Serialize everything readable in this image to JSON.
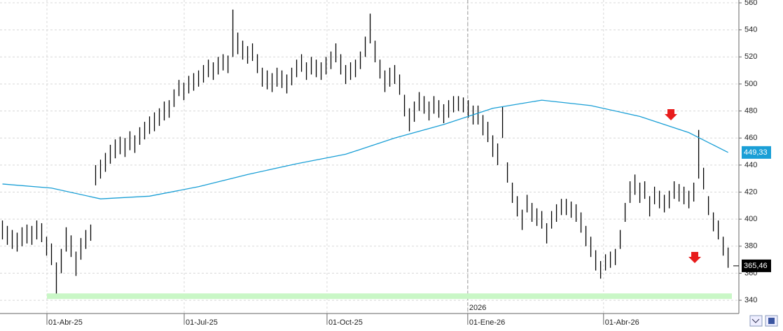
{
  "chart_data": {
    "type": "ohlc",
    "xlim": [
      -0.5,
      150.2
    ],
    "xticks": [
      {
        "value": 9.07,
        "label": "01-Abr-25"
      },
      {
        "value": 37.07,
        "label": "01-Jul-25"
      },
      {
        "value": 66.2,
        "label": "01-Oct-25"
      },
      {
        "value": 94.9,
        "label": "01-Ene-26"
      },
      {
        "value": 122.6,
        "label": "01-Abr-26"
      }
    ],
    "year_marker": {
      "value": 94.9,
      "label": "2026"
    },
    "ylim": [
      330.2,
      562.1
    ],
    "yticks": [
      340,
      360,
      380,
      400,
      420,
      440,
      460,
      480,
      500,
      520,
      540,
      560
    ],
    "grid": true,
    "color": "#000000",
    "high": [
      399,
      395,
      392,
      390,
      394,
      396,
      395,
      399,
      397,
      387,
      382,
      368,
      378,
      394,
      388,
      376,
      386,
      392,
      396,
      440,
      444,
      449,
      455,
      459,
      461,
      460,
      465,
      462,
      468,
      472,
      476,
      479,
      482,
      487,
      488,
      496,
      503,
      501,
      506,
      508,
      510,
      514,
      518,
      516,
      520,
      522,
      521,
      555,
      538,
      532,
      528,
      530,
      522,
      512,
      510,
      508,
      512,
      510,
      507,
      512,
      518,
      522,
      516,
      520,
      518,
      516,
      520,
      524,
      530,
      522,
      514,
      516,
      518,
      524,
      535,
      552,
      532,
      518,
      510,
      512,
      514,
      507,
      492,
      482,
      487,
      494,
      491,
      487,
      491,
      488,
      485,
      488,
      491,
      491,
      490,
      488,
      484,
      484,
      477,
      472,
      462,
      456,
      483,
      442,
      427,
      417,
      407,
      418,
      412,
      408,
      406,
      397,
      406,
      411,
      415,
      415,
      413,
      411,
      405,
      395,
      387,
      377,
      369,
      374,
      376,
      378,
      392,
      412,
      428,
      433,
      427,
      428,
      417,
      424,
      421,
      418,
      421,
      428,
      426,
      424,
      421,
      427,
      466,
      438,
      417,
      405,
      399,
      387,
      379
    ],
    "low": [
      385,
      381,
      378,
      376,
      380,
      382,
      381,
      385,
      383,
      373,
      366,
      345,
      360,
      376,
      372,
      358,
      370,
      378,
      384,
      425,
      430,
      435,
      441,
      445,
      448,
      446,
      451,
      449,
      455,
      459,
      463,
      465,
      469,
      473,
      475,
      483,
      491,
      488,
      493,
      495,
      498,
      501,
      505,
      503,
      507,
      510,
      508,
      520,
      522,
      518,
      515,
      517,
      508,
      498,
      496,
      494,
      498,
      497,
      493,
      499,
      505,
      509,
      503,
      507,
      505,
      503,
      507,
      511,
      516,
      507,
      500,
      503,
      505,
      511,
      520,
      530,
      516,
      504,
      494,
      498,
      500,
      492,
      476,
      465,
      472,
      480,
      478,
      473,
      478,
      475,
      471,
      475,
      479,
      480,
      479,
      475,
      470,
      470,
      462,
      457,
      446,
      440,
      460,
      427,
      412,
      402,
      392,
      405,
      398,
      395,
      393,
      382,
      393,
      398,
      403,
      403,
      401,
      398,
      390,
      380,
      372,
      362,
      356,
      362,
      364,
      366,
      378,
      398,
      412,
      418,
      412,
      415,
      402,
      411,
      408,
      405,
      408,
      415,
      413,
      411,
      408,
      413,
      430,
      422,
      403,
      391,
      385,
      373,
      364
    ],
    "last_close": 365.46,
    "last_close_label": "365,46",
    "moving_average": {
      "color": "#1a9fd6",
      "x": [
        0,
        10,
        20,
        30,
        40,
        50,
        60,
        70,
        80,
        90,
        100,
        110,
        120,
        130,
        140,
        148
      ],
      "values": [
        426,
        423,
        415,
        417,
        424,
        433,
        441,
        448,
        460,
        470,
        482,
        488,
        484,
        476,
        464,
        449.33
      ],
      "last_label": "449,33"
    },
    "support": {
      "value": 343,
      "color": "#c9f7c6"
    }
  }
}
